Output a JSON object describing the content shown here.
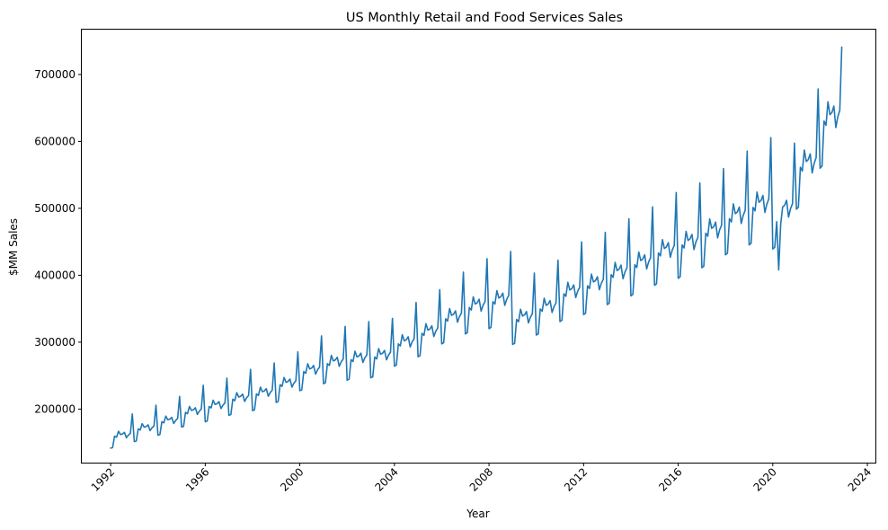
{
  "chart_data": {
    "type": "line",
    "title": "US Monthly Retail and Food Services Sales",
    "xlabel": "Year",
    "ylabel": "$MM Sales",
    "xlim": [
      1990.78,
      2024.34
    ],
    "ylim": [
      120000,
      767000
    ],
    "x_ticks": [
      1992,
      1996,
      2000,
      2004,
      2008,
      2012,
      2016,
      2020,
      2024
    ],
    "y_ticks": [
      200000,
      300000,
      400000,
      500000,
      600000,
      700000
    ],
    "grid": false,
    "legend": "none",
    "line_color": "#1f77b4",
    "series": [
      {
        "x_start": "1992-01",
        "x_end": "2022-12",
        "frequency": "monthly",
        "yearly_baseline": [
          162000,
          173000,
          184000,
          198000,
          207000,
          218000,
          226000,
          240000,
          260000,
          272000,
          278000,
          282000,
          302000,
          318000,
          340000,
          357000,
          366000,
          339000,
          355000,
          378000,
          390000,
          407000,
          422000,
          440000,
          452000,
          470000,
          492000,
          509000,
          502000,
          570000,
          640000
        ],
        "seasonal_factors": [
          0.875,
          0.88,
          0.985,
          0.975,
          1.03,
          1.0,
          1.005,
          1.02,
          0.97,
          0.995,
          1.01,
          1.19
        ],
        "shocks": [
          {
            "month": "2020-03",
            "value": 480000
          },
          {
            "month": "2020-04",
            "value": 408000
          },
          {
            "month": "2020-05",
            "value": 476000
          },
          {
            "month": "2022-12",
            "value": 741000
          }
        ]
      }
    ]
  }
}
